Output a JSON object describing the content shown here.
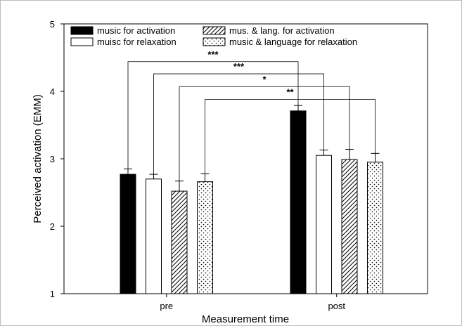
{
  "chart_data": {
    "type": "bar",
    "xlabel": "Measurement time",
    "ylabel": "Perceived activation (EMM)",
    "ylim": [
      1,
      5
    ],
    "yticks": [
      1,
      2,
      3,
      4,
      5
    ],
    "categories": [
      "pre",
      "post"
    ],
    "grid": false,
    "legend_position": "top-left",
    "series": [
      {
        "name": "music for activation",
        "values": [
          2.77,
          3.71
        ],
        "errors": [
          0.08,
          0.08
        ],
        "fill": "solid",
        "color": "#000000"
      },
      {
        "name": "muisc for relaxation",
        "values": [
          2.7,
          3.05
        ],
        "errors": [
          0.07,
          0.08
        ],
        "fill": "open",
        "color": "#ffffff"
      },
      {
        "name": "mus. & lang. for activation",
        "values": [
          2.52,
          2.99
        ],
        "errors": [
          0.15,
          0.15
        ],
        "fill": "hatch",
        "color": "#ffffff"
      },
      {
        "name": "music & language for relaxation",
        "values": [
          2.66,
          2.95
        ],
        "errors": [
          0.12,
          0.13
        ],
        "fill": "dots",
        "color": "#ffffff"
      }
    ],
    "annotations": [
      {
        "label": "***",
        "series_index": 0,
        "y_bracket": 4.44
      },
      {
        "label": "***",
        "series_index": 1,
        "y_bracket": 4.26
      },
      {
        "label": "*",
        "series_index": 2,
        "y_bracket": 4.07
      },
      {
        "label": "**",
        "series_index": 3,
        "y_bracket": 3.88
      }
    ]
  }
}
